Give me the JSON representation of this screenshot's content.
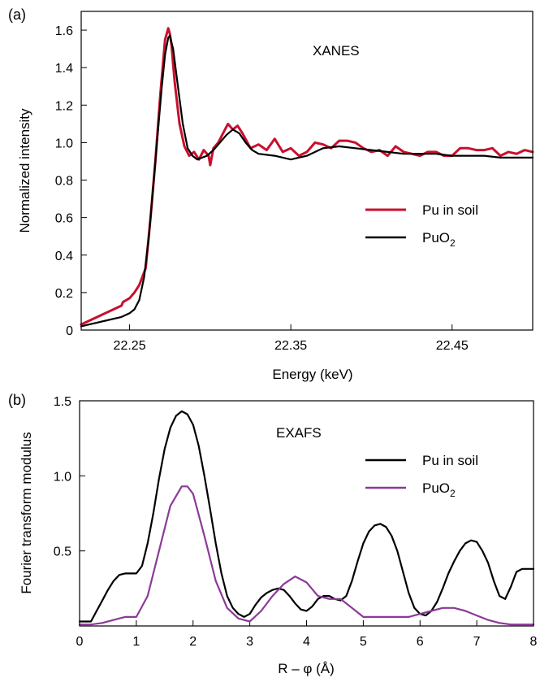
{
  "chart_data": [
    {
      "panel": "(a)",
      "type": "line",
      "annotation": "XANES",
      "xlabel": "Energy (keV)",
      "ylabel": "Normalized intensity",
      "xlim": [
        22.22,
        22.5
      ],
      "ylim": [
        0,
        1.7
      ],
      "xticks": [
        22.25,
        22.35,
        22.45
      ],
      "yticks": [
        0,
        0.2,
        0.4,
        0.6,
        0.8,
        1.0,
        1.2,
        1.4,
        1.6
      ],
      "ytick_labels": [
        "0",
        "0.2",
        "0.4",
        "0.6",
        "0.8",
        "1.0",
        "1.2",
        "1.4",
        "1.6"
      ],
      "xtick_labels": [
        "22.25",
        "22.35",
        "22.45"
      ],
      "grid": false,
      "legend": "center-right",
      "series": [
        {
          "name": "Pu in soil",
          "color": "#c8102e",
          "x": [
            22.22,
            22.245,
            22.246,
            22.25,
            22.253,
            22.256,
            22.26,
            22.263,
            22.266,
            22.269,
            22.272,
            22.274,
            22.275,
            22.276,
            22.278,
            22.281,
            22.284,
            22.287,
            22.29,
            22.293,
            22.296,
            22.299,
            22.3,
            22.302,
            22.305,
            22.308,
            22.311,
            22.314,
            22.317,
            22.32,
            22.325,
            22.33,
            22.335,
            22.34,
            22.345,
            22.35,
            22.355,
            22.36,
            22.365,
            22.37,
            22.375,
            22.38,
            22.385,
            22.39,
            22.395,
            22.4,
            22.405,
            22.41,
            22.415,
            22.42,
            22.425,
            22.43,
            22.435,
            22.44,
            22.445,
            22.45,
            22.455,
            22.46,
            22.465,
            22.47,
            22.475,
            22.48,
            22.485,
            22.49,
            22.495,
            22.5
          ],
          "y": [
            0.03,
            0.13,
            0.15,
            0.17,
            0.2,
            0.24,
            0.33,
            0.6,
            0.9,
            1.25,
            1.55,
            1.61,
            1.58,
            1.52,
            1.32,
            1.1,
            0.98,
            0.93,
            0.95,
            0.91,
            0.96,
            0.93,
            0.88,
            0.97,
            1.0,
            1.05,
            1.1,
            1.07,
            1.09,
            1.05,
            0.97,
            0.99,
            0.96,
            1.02,
            0.95,
            0.97,
            0.93,
            0.95,
            1.0,
            0.99,
            0.97,
            1.01,
            1.01,
            1.0,
            0.97,
            0.95,
            0.96,
            0.93,
            0.98,
            0.95,
            0.94,
            0.93,
            0.95,
            0.95,
            0.93,
            0.93,
            0.97,
            0.97,
            0.96,
            0.96,
            0.97,
            0.93,
            0.95,
            0.94,
            0.96,
            0.95
          ]
        },
        {
          "name": "PuO2",
          "color": "#000000",
          "x": [
            22.22,
            22.225,
            22.23,
            22.235,
            22.24,
            22.245,
            22.25,
            22.253,
            22.256,
            22.259,
            22.262,
            22.265,
            22.268,
            22.27,
            22.272,
            22.274,
            22.275,
            22.277,
            22.28,
            22.283,
            22.286,
            22.289,
            22.292,
            22.295,
            22.298,
            22.302,
            22.306,
            22.31,
            22.314,
            22.318,
            22.322,
            22.326,
            22.33,
            22.34,
            22.35,
            22.36,
            22.37,
            22.38,
            22.39,
            22.4,
            22.41,
            22.42,
            22.43,
            22.44,
            22.45,
            22.46,
            22.47,
            22.48,
            22.49,
            22.5
          ],
          "y": [
            0.02,
            0.03,
            0.04,
            0.05,
            0.06,
            0.07,
            0.09,
            0.11,
            0.16,
            0.28,
            0.5,
            0.8,
            1.1,
            1.3,
            1.47,
            1.56,
            1.57,
            1.5,
            1.3,
            1.1,
            0.97,
            0.93,
            0.91,
            0.92,
            0.93,
            0.96,
            1.0,
            1.04,
            1.07,
            1.05,
            1.0,
            0.96,
            0.94,
            0.93,
            0.91,
            0.93,
            0.97,
            0.98,
            0.97,
            0.96,
            0.95,
            0.94,
            0.94,
            0.94,
            0.93,
            0.93,
            0.93,
            0.92,
            0.92,
            0.92
          ]
        }
      ]
    },
    {
      "panel": "(b)",
      "type": "line",
      "annotation": "EXAFS",
      "xlabel": "R – φ (Å)",
      "ylabel": "Fourier transform modulus",
      "xlim": [
        0,
        8
      ],
      "ylim": [
        0,
        1.5
      ],
      "xticks": [
        0,
        1,
        2,
        3,
        4,
        5,
        6,
        7,
        8
      ],
      "xtick_labels": [
        "0",
        "1",
        "2",
        "3",
        "4",
        "5",
        "6",
        "7",
        "8"
      ],
      "yticks": [
        0.5,
        1.0,
        1.5
      ],
      "ytick_labels": [
        "0.5",
        "1.0",
        "1.5"
      ],
      "grid": false,
      "legend": "top-right",
      "series": [
        {
          "name": "Pu in soil",
          "color": "#000000",
          "x": [
            0.0,
            0.1,
            0.2,
            0.3,
            0.4,
            0.5,
            0.6,
            0.7,
            0.8,
            0.9,
            1.0,
            1.1,
            1.2,
            1.3,
            1.4,
            1.5,
            1.6,
            1.7,
            1.8,
            1.9,
            2.0,
            2.1,
            2.2,
            2.3,
            2.4,
            2.5,
            2.6,
            2.7,
            2.8,
            2.9,
            3.0,
            3.1,
            3.2,
            3.3,
            3.4,
            3.5,
            3.6,
            3.7,
            3.8,
            3.9,
            4.0,
            4.1,
            4.2,
            4.3,
            4.4,
            4.5,
            4.6,
            4.7,
            4.8,
            4.9,
            5.0,
            5.1,
            5.2,
            5.3,
            5.4,
            5.5,
            5.6,
            5.7,
            5.8,
            5.9,
            6.0,
            6.1,
            6.2,
            6.3,
            6.4,
            6.5,
            6.6,
            6.7,
            6.8,
            6.9,
            7.0,
            7.1,
            7.2,
            7.3,
            7.4,
            7.5,
            7.6,
            7.7,
            7.8,
            7.9,
            8.0
          ],
          "y": [
            0.03,
            0.03,
            0.03,
            0.1,
            0.17,
            0.24,
            0.3,
            0.34,
            0.35,
            0.35,
            0.35,
            0.4,
            0.55,
            0.75,
            0.98,
            1.18,
            1.32,
            1.4,
            1.43,
            1.41,
            1.34,
            1.2,
            1.0,
            0.78,
            0.55,
            0.35,
            0.2,
            0.12,
            0.08,
            0.06,
            0.08,
            0.14,
            0.19,
            0.22,
            0.24,
            0.25,
            0.24,
            0.2,
            0.15,
            0.11,
            0.1,
            0.13,
            0.18,
            0.2,
            0.2,
            0.18,
            0.17,
            0.2,
            0.3,
            0.43,
            0.55,
            0.63,
            0.67,
            0.68,
            0.66,
            0.6,
            0.5,
            0.36,
            0.22,
            0.12,
            0.08,
            0.07,
            0.1,
            0.16,
            0.25,
            0.35,
            0.43,
            0.5,
            0.55,
            0.57,
            0.56,
            0.5,
            0.42,
            0.3,
            0.2,
            0.18,
            0.26,
            0.36,
            0.38,
            0.38,
            0.38
          ]
        },
        {
          "name": "PuO2",
          "color": "#8b3a96",
          "x": [
            0.0,
            0.2,
            0.4,
            0.6,
            0.8,
            1.0,
            1.2,
            1.4,
            1.6,
            1.8,
            1.9,
            2.0,
            2.2,
            2.4,
            2.6,
            2.8,
            3.0,
            3.2,
            3.4,
            3.6,
            3.8,
            4.0,
            4.2,
            4.4,
            4.6,
            4.8,
            5.0,
            5.2,
            5.4,
            5.6,
            5.8,
            6.0,
            6.2,
            6.4,
            6.6,
            6.8,
            7.0,
            7.2,
            7.4,
            7.6,
            7.8,
            8.0
          ],
          "y": [
            0.01,
            0.01,
            0.02,
            0.04,
            0.06,
            0.06,
            0.2,
            0.5,
            0.8,
            0.93,
            0.93,
            0.88,
            0.6,
            0.3,
            0.12,
            0.05,
            0.03,
            0.1,
            0.2,
            0.28,
            0.33,
            0.29,
            0.2,
            0.18,
            0.18,
            0.12,
            0.06,
            0.06,
            0.06,
            0.06,
            0.06,
            0.08,
            0.1,
            0.12,
            0.12,
            0.1,
            0.07,
            0.04,
            0.02,
            0.01,
            0.01,
            0.01
          ]
        }
      ]
    }
  ]
}
